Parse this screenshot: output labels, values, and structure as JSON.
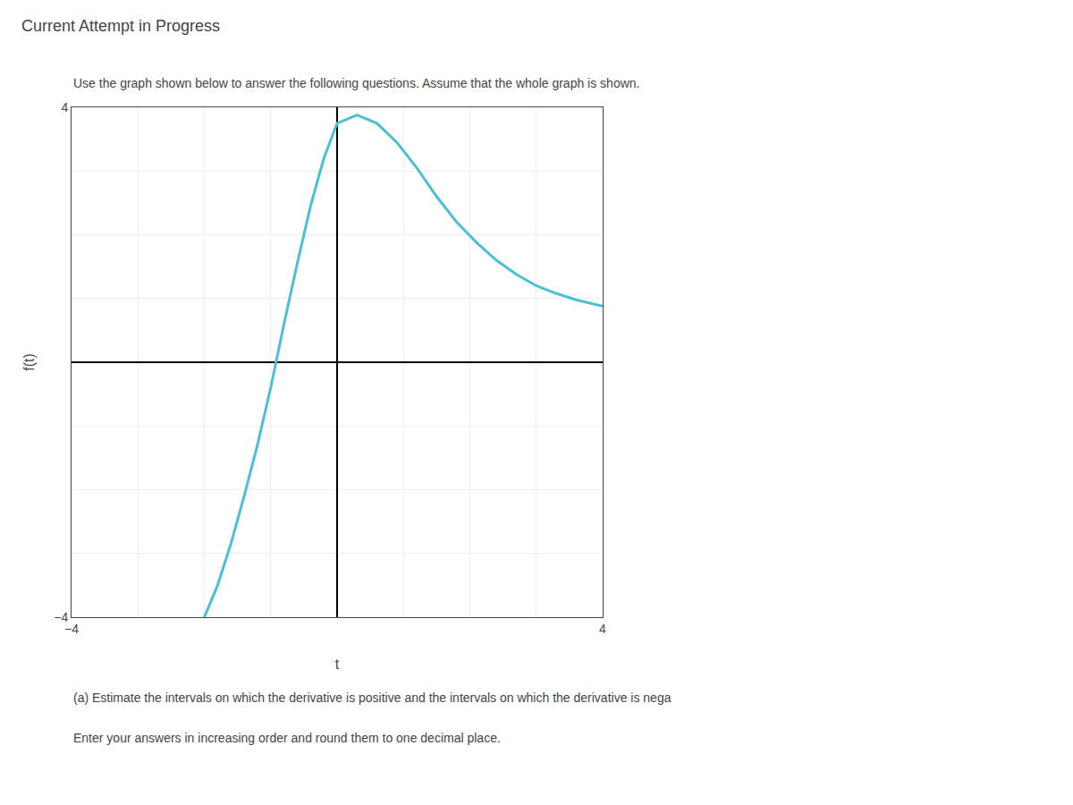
{
  "chart_data": {
    "type": "line",
    "title": "Current Attempt in Progress",
    "subtitle": "Use the graph shown below to answer the following questions. Assume that the whole graph is shown.",
    "annotations": [
      "(a) Estimate the intervals on which the derivative is positive and the intervals on which the derivative is nega",
      "Enter your answers in increasing order and round them to one decimal place."
    ],
    "x_label": "t",
    "y_label": "f(t)",
    "x": [
      -2.0,
      -1.8,
      -1.6,
      -1.4,
      -1.2,
      -1.0,
      -0.8,
      -0.6,
      -0.4,
      -0.2,
      0.0,
      0.3,
      0.6,
      0.9,
      1.2,
      1.5,
      1.8,
      2.1,
      2.4,
      2.7,
      3.0,
      3.3,
      3.6,
      3.9,
      4.0
    ],
    "values": [
      -4.0,
      -3.5,
      -2.85,
      -2.1,
      -1.3,
      -0.4,
      0.6,
      1.55,
      2.45,
      3.2,
      3.75,
      3.88,
      3.75,
      3.45,
      3.05,
      2.6,
      2.2,
      1.88,
      1.6,
      1.38,
      1.2,
      1.08,
      0.98,
      0.9,
      0.88
    ],
    "color": "#4BBFD6",
    "xlim": [
      -4,
      4
    ],
    "ylim": [
      -4,
      4
    ],
    "xticks": [
      {
        "value": -4,
        "label": "−4"
      },
      {
        "value": -3,
        "label": null
      },
      {
        "value": -2,
        "label": null
      },
      {
        "value": -1,
        "label": null
      },
      {
        "value": 0,
        "label": null
      },
      {
        "value": 1,
        "label": null
      },
      {
        "value": 2,
        "label": null
      },
      {
        "value": 3,
        "label": null
      },
      4
    ],
    "yticks": [
      {
        "value": -4,
        "label": "−4"
      },
      {
        "value": -3,
        "label": null
      },
      {
        "value": -2,
        "label": null
      },
      {
        "value": -1,
        "label": null
      },
      {
        "value": 0,
        "label": null
      },
      {
        "value": 1,
        "label": null
      },
      {
        "value": 2,
        "label": null
      },
      {
        "value": 3,
        "label": null
      },
      4
    ],
    "grid": true
  }
}
